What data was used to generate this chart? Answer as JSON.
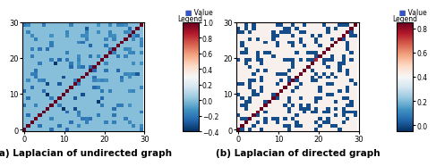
{
  "n": 31,
  "title_a": "(a) Laplacian of undirected graph",
  "title_b": "(b) Laplacian of directed graph",
  "legend_title": "Legend",
  "legend_label": "■ Value",
  "cmap_a_vmin": -0.4,
  "cmap_a_vmax": 1.0,
  "cmap_b_vmin": -0.05,
  "cmap_b_vmax": 0.85,
  "background_color": "#ffffff",
  "seed_a": 42,
  "seed_b": 77,
  "title_fontsize": 7.5,
  "tick_fontsize": 6,
  "colorbar_fontsize": 5.5,
  "prob_undirected": 0.12,
  "prob_directed": 0.72,
  "cb_a_ticks": [
    -0.4,
    -0.2,
    0.0,
    0.2,
    0.4,
    0.6,
    0.8,
    1.0
  ],
  "cb_b_ticks": [
    0.0,
    0.2,
    0.4,
    0.6,
    0.8
  ]
}
